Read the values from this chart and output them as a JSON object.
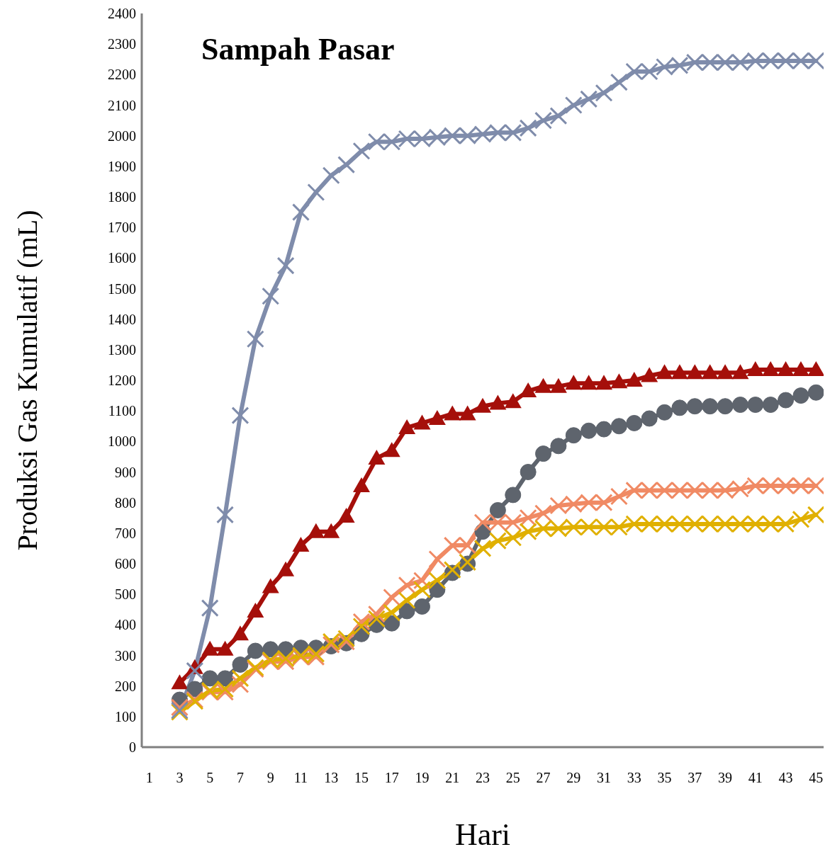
{
  "chart_data": {
    "type": "line",
    "title": "Sampah Pasar",
    "xlabel": "Hari",
    "ylabel": "Produksi Gas Kumulatif (mL)",
    "x": [
      3,
      4,
      5,
      6,
      7,
      8,
      9,
      10,
      11,
      12,
      13,
      14,
      15,
      16,
      17,
      18,
      19,
      20,
      21,
      22,
      23,
      24,
      25,
      26,
      27,
      28,
      29,
      30,
      31,
      32,
      33,
      34,
      35,
      36,
      37,
      38,
      39,
      40,
      41,
      42,
      43,
      44,
      45
    ],
    "xlim": [
      0.5,
      45.5
    ],
    "xticks": [
      1,
      3,
      5,
      7,
      9,
      11,
      13,
      15,
      17,
      19,
      21,
      23,
      25,
      27,
      29,
      31,
      33,
      35,
      37,
      39,
      41,
      43,
      45
    ],
    "ylim": [
      0,
      2400
    ],
    "yticks": [
      0,
      100,
      200,
      300,
      400,
      500,
      600,
      700,
      800,
      900,
      1000,
      1100,
      1200,
      1300,
      1400,
      1500,
      1600,
      1700,
      1800,
      1900,
      2000,
      2100,
      2200,
      2300,
      2400
    ],
    "grid": false,
    "legend": false,
    "line_style": "solid",
    "series": [
      {
        "color": "#a50f0a",
        "marker": "triangle",
        "values": [
          210,
          260,
          320,
          320,
          370,
          445,
          525,
          580,
          660,
          705,
          705,
          755,
          855,
          945,
          970,
          1045,
          1060,
          1075,
          1090,
          1090,
          1115,
          1125,
          1130,
          1165,
          1180,
          1180,
          1190,
          1190,
          1190,
          1195,
          1200,
          1215,
          1225,
          1225,
          1225,
          1225,
          1225,
          1225,
          1235,
          1235,
          1235,
          1235,
          1235
        ]
      },
      {
        "color": "#5e646d",
        "marker": "circle",
        "values": [
          155,
          190,
          225,
          225,
          270,
          315,
          320,
          320,
          325,
          325,
          330,
          340,
          370,
          400,
          405,
          445,
          460,
          515,
          570,
          600,
          705,
          775,
          825,
          900,
          960,
          985,
          1020,
          1035,
          1040,
          1050,
          1060,
          1075,
          1095,
          1110,
          1115,
          1115,
          1115,
          1120,
          1120,
          1120,
          1135,
          1150,
          1160
        ]
      },
      {
        "color": "#f08a64",
        "marker": "cross",
        "values": [
          130,
          155,
          180,
          180,
          205,
          255,
          280,
          280,
          295,
          295,
          335,
          345,
          410,
          435,
          490,
          530,
          545,
          615,
          660,
          660,
          735,
          735,
          735,
          750,
          765,
          790,
          795,
          800,
          800,
          820,
          840,
          840,
          840,
          840,
          840,
          840,
          840,
          845,
          855,
          855,
          855,
          855,
          855
        ]
      },
      {
        "color": "#e0b000",
        "marker": "cross",
        "values": [
          115,
          150,
          185,
          190,
          225,
          260,
          285,
          290,
          300,
          305,
          345,
          355,
          395,
          420,
          440,
          480,
          515,
          545,
          580,
          605,
          650,
          675,
          685,
          705,
          715,
          715,
          720,
          720,
          720,
          720,
          730,
          730,
          730,
          730,
          730,
          730,
          730,
          730,
          730,
          730,
          730,
          745,
          760
        ]
      },
      {
        "color": "#7f8cab",
        "marker": "cross",
        "values": [
          120,
          250,
          455,
          760,
          1085,
          1335,
          1475,
          1575,
          1750,
          1815,
          1870,
          1905,
          1950,
          1980,
          1980,
          1990,
          1990,
          1995,
          2000,
          2000,
          2005,
          2010,
          2010,
          2025,
          2050,
          2065,
          2100,
          2120,
          2140,
          2175,
          2210,
          2210,
          2225,
          2230,
          2240,
          2240,
          2240,
          2240,
          2245,
          2245,
          2245,
          2245,
          2245
        ]
      }
    ]
  }
}
